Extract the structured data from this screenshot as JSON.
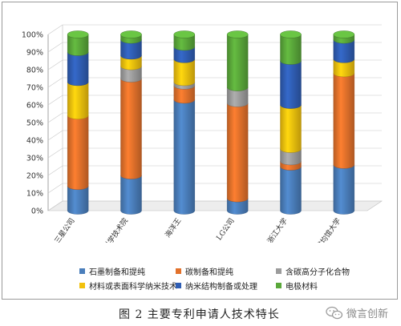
{
  "chart_data": {
    "type": "bar",
    "stacked": true,
    "percent": true,
    "categories": [
      "三星公司",
      "韩国科学技术院",
      "海洋王",
      "LG公司",
      "浙江大学",
      "成均馆大学"
    ],
    "series": [
      {
        "name": "石墨制备和提纯",
        "color": "#4a7ebb",
        "values": [
          14,
          20,
          63,
          7,
          25,
          26
        ]
      },
      {
        "name": "碳制备和提纯",
        "color": "#e2712b",
        "values": [
          40,
          55,
          8,
          54,
          3,
          52
        ]
      },
      {
        "name": "含碳高分子化合物",
        "color": "#9c9c9c",
        "values": [
          0,
          7,
          2,
          9,
          7,
          0
        ]
      },
      {
        "name": "材料或表面科学纳米技术",
        "color": "#f2c10d",
        "values": [
          19,
          6,
          13,
          0,
          25,
          8
        ]
      },
      {
        "name": "纳米结构制备或处理",
        "color": "#2f5eb4",
        "values": [
          17,
          9,
          7,
          0,
          25,
          11
        ]
      },
      {
        "name": "电极材料",
        "color": "#5aa83a",
        "values": [
          10,
          3,
          7,
          30,
          15,
          3
        ]
      }
    ],
    "ylim": [
      0,
      100
    ],
    "yticks": [
      "0%",
      "10%",
      "20%",
      "30%",
      "40%",
      "50%",
      "60%",
      "70%",
      "80%",
      "90%",
      "100%"
    ],
    "grid": true,
    "legend_position": "bottom"
  },
  "caption": "图 2  主要专利申请人技术特长",
  "watermark": {
    "text": "微言创新",
    "icon": "wechat-icon"
  }
}
